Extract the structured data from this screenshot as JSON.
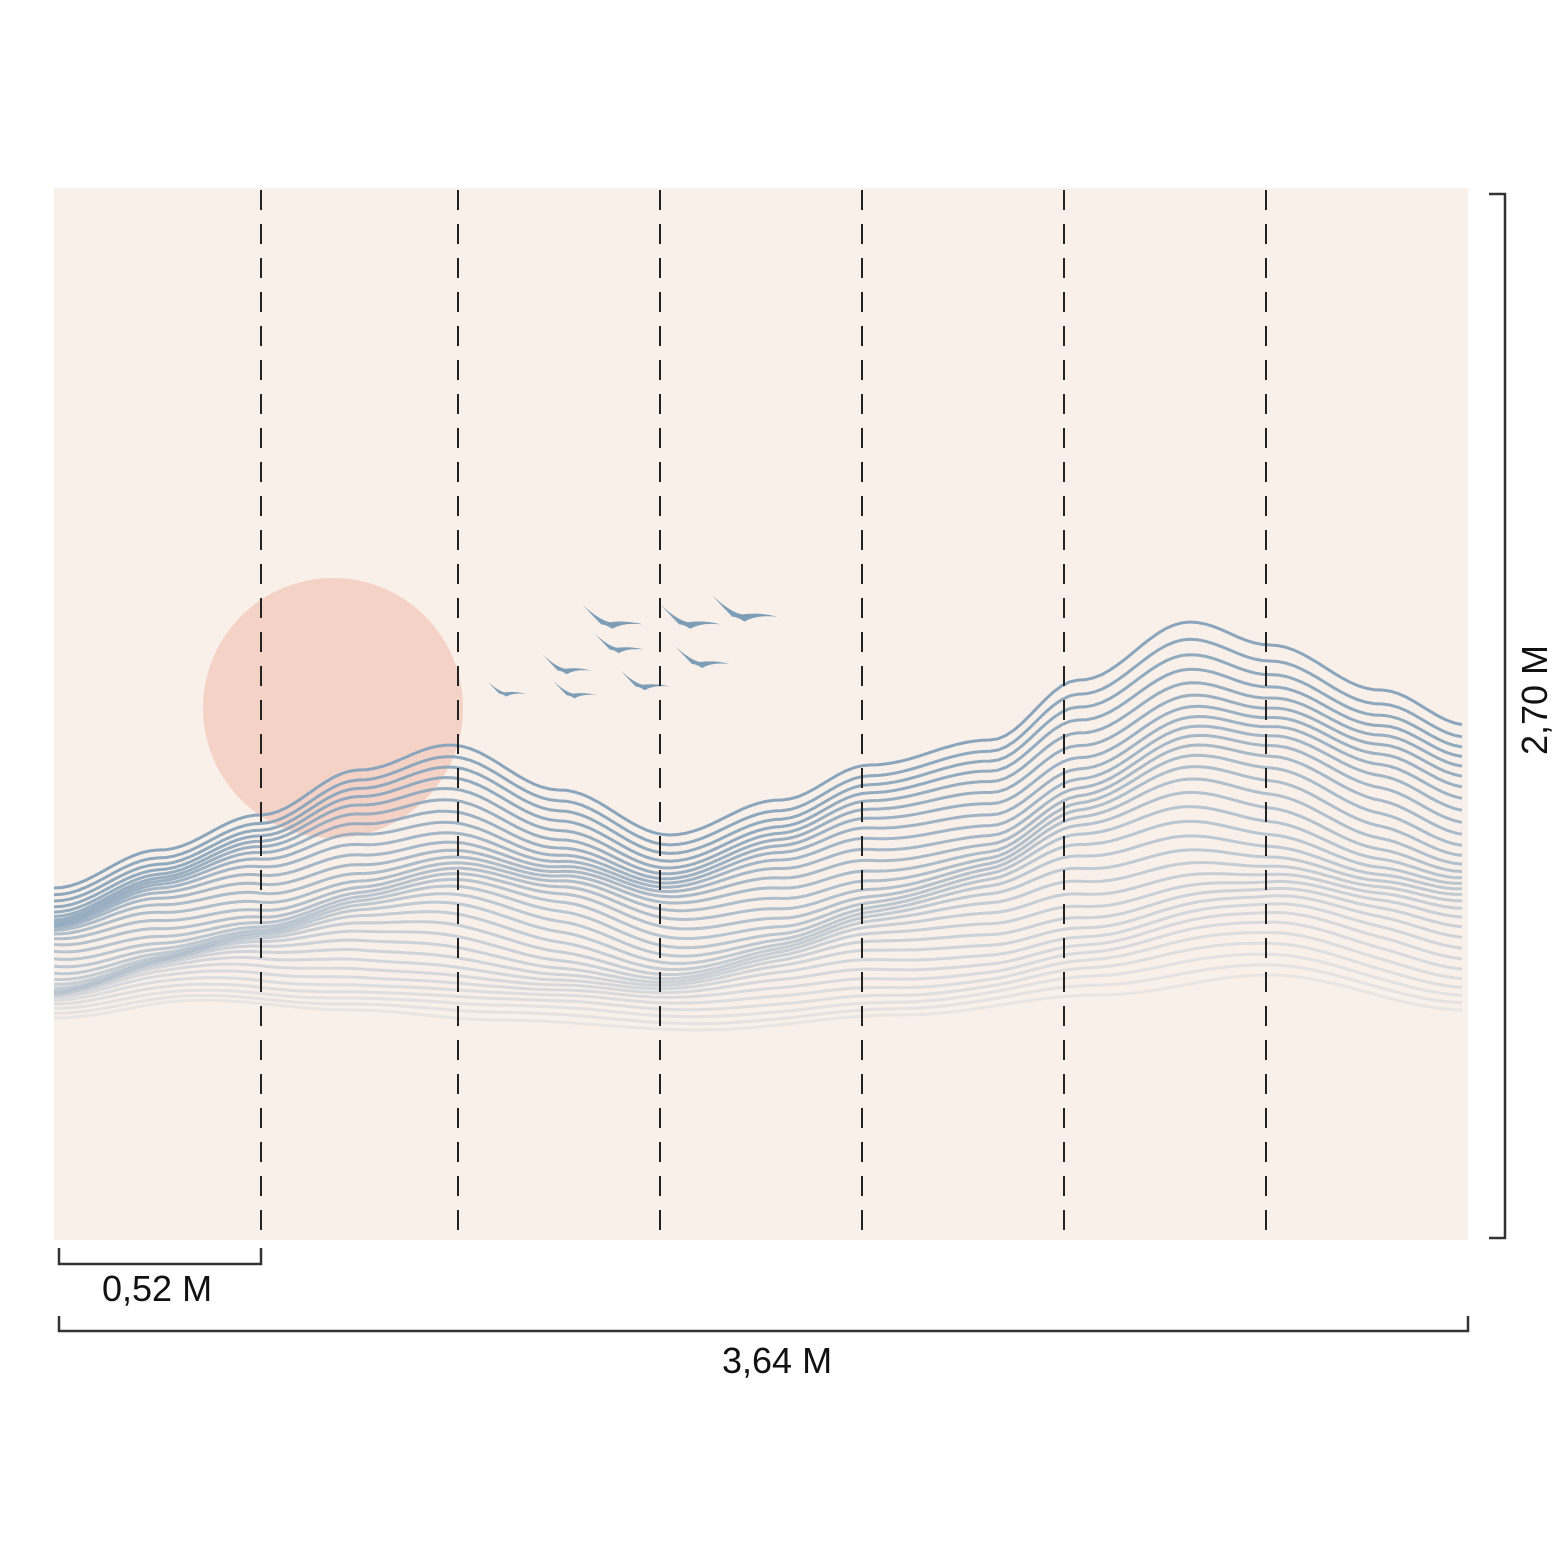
{
  "dimensions": {
    "panel_width": "0,52 M",
    "total_width": "3,64 M",
    "total_height": "2,70 M"
  },
  "panel_count": 7,
  "colors": {
    "background": "#f9f0ea",
    "sun": "#f5d2c6",
    "waves": "#8aa5bc",
    "birds": "#7e9db6",
    "lines": "#222222"
  },
  "icons": [
    "sun-circle",
    "birds-flock",
    "wave-mountains"
  ]
}
